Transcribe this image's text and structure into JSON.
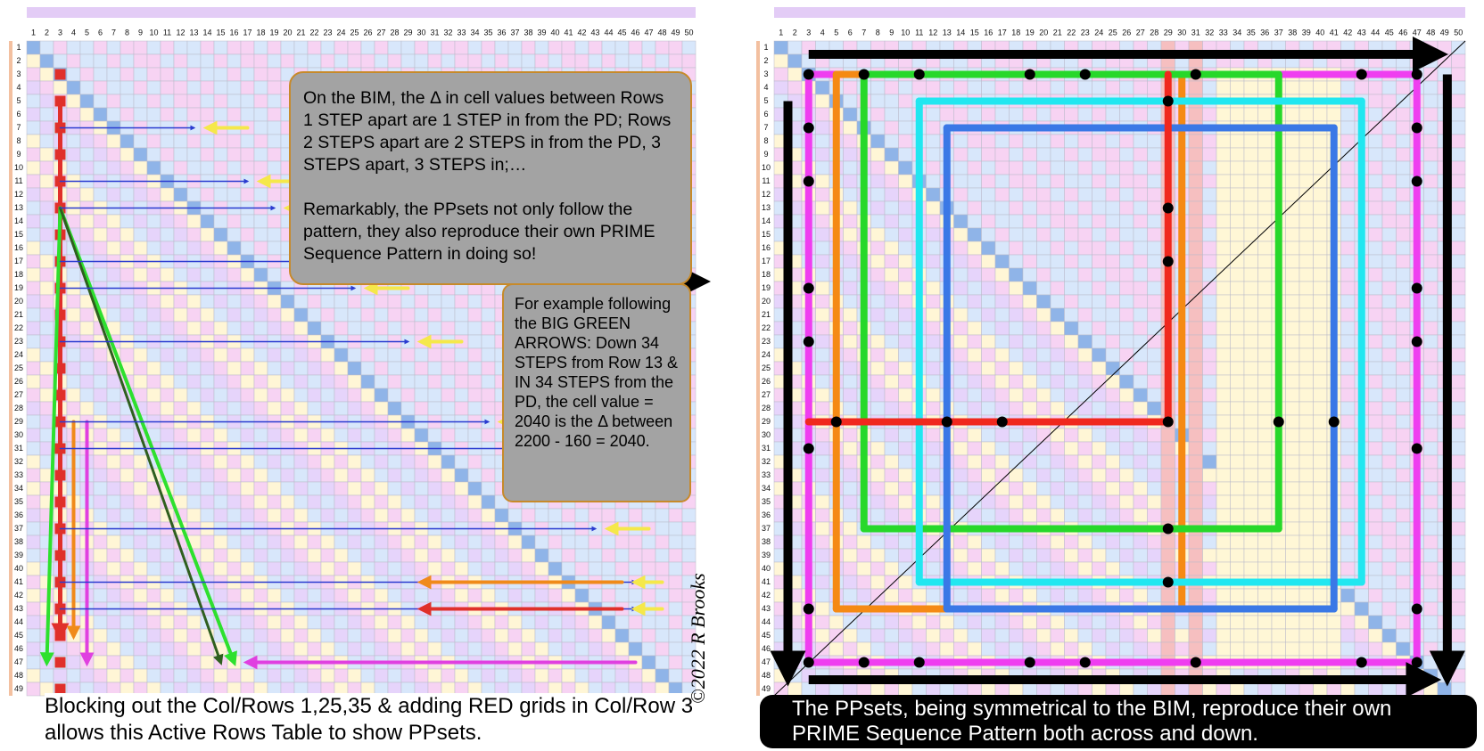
{
  "grid": {
    "columns": [
      1,
      2,
      3,
      4,
      5,
      6,
      7,
      8,
      9,
      10,
      11,
      12,
      13,
      14,
      15,
      16,
      17,
      18,
      19,
      20,
      21,
      22,
      23,
      24,
      25,
      26,
      27,
      28,
      29,
      30,
      31,
      32,
      33,
      34,
      35,
      36,
      37,
      38,
      39,
      40,
      41,
      42,
      43,
      44,
      45,
      46,
      47,
      48,
      49,
      50
    ],
    "rows": [
      1,
      2,
      3,
      4,
      5,
      6,
      7,
      8,
      9,
      10,
      11,
      12,
      13,
      14,
      15,
      16,
      17,
      18,
      19,
      20,
      21,
      22,
      23,
      24,
      25,
      26,
      27,
      28,
      29,
      30,
      31,
      32,
      33,
      34,
      35,
      36,
      37,
      38,
      39,
      40,
      41,
      42,
      43,
      44,
      45,
      46,
      47,
      48,
      49
    ]
  },
  "left_panel": {
    "callout": [
      "On the BIM, the Δ in cell values between Rows 1 STEP apart are 1 STEP in from the PD; Rows 2 STEPS apart are 2 STEPS in from the PD, 3 STEPS apart, 3 STEPS in;…",
      "Remarkably, the PPsets not only follow the pattern, they also reproduce their own PRIME Sequence Pattern in doing so!"
    ],
    "example": "For example following the BIG GREEN ARROWS: Down 34 STEPS from Row 13 & IN 34 STEPS from the PD, the cell value = 2040 is the Δ between 2200 - 160 = 2040.",
    "caption": "Blocking out the Col/Rows 1,25,35 & adding RED grids in Col/Row 3 allows this Active Rows Table to show PPsets."
  },
  "right_panel": {
    "caption": "The PPsets, being symmetrical to the BIM, reproduce their own PRIME Sequence Pattern both across and down."
  },
  "signature": "©2022 R Brooks"
}
